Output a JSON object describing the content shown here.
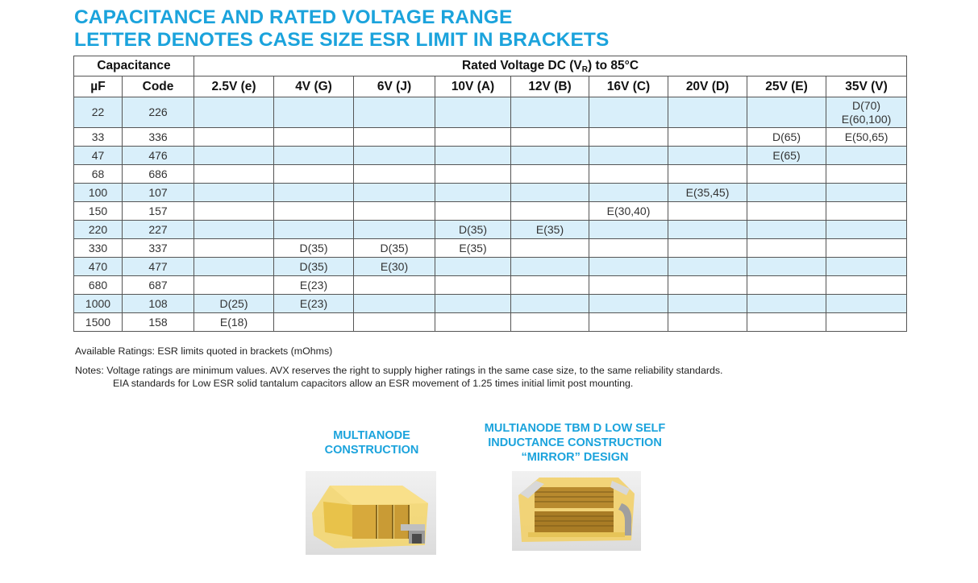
{
  "title": {
    "line1": "CAPACITANCE AND RATED VOLTAGE RANGE",
    "line2": "LETTER DENOTES CASE SIZE ESR LIMIT IN BRACKETS"
  },
  "table": {
    "capacitance_header": "Capacitance",
    "voltage_header_pre": "Rated Voltage DC (V",
    "voltage_header_sub": "R",
    "voltage_header_post": ") to 85°C",
    "col_uf": "µF",
    "col_code": "Code",
    "voltages": [
      "2.5V (e)",
      "4V (G)",
      "6V (J)",
      "10V (A)",
      "12V (B)",
      "16V (C)",
      "20V (D)",
      "25V (E)",
      "35V (V)"
    ],
    "rows": [
      {
        "uf": "22",
        "code": "226",
        "cells": [
          "",
          "",
          "",
          "",
          "",
          "",
          "",
          "",
          "D(70)\nE(60,100)"
        ]
      },
      {
        "uf": "33",
        "code": "336",
        "cells": [
          "",
          "",
          "",
          "",
          "",
          "",
          "",
          "D(65)",
          "E(50,65)"
        ]
      },
      {
        "uf": "47",
        "code": "476",
        "cells": [
          "",
          "",
          "",
          "",
          "",
          "",
          "",
          "E(65)",
          ""
        ]
      },
      {
        "uf": "68",
        "code": "686",
        "cells": [
          "",
          "",
          "",
          "",
          "",
          "",
          "",
          "",
          ""
        ]
      },
      {
        "uf": "100",
        "code": "107",
        "cells": [
          "",
          "",
          "",
          "",
          "",
          "",
          "E(35,45)",
          "",
          ""
        ]
      },
      {
        "uf": "150",
        "code": "157",
        "cells": [
          "",
          "",
          "",
          "",
          "",
          "E(30,40)",
          "",
          "",
          ""
        ]
      },
      {
        "uf": "220",
        "code": "227",
        "cells": [
          "",
          "",
          "",
          "D(35)",
          "E(35)",
          "",
          "",
          "",
          ""
        ]
      },
      {
        "uf": "330",
        "code": "337",
        "cells": [
          "",
          "D(35)",
          "D(35)",
          "E(35)",
          "",
          "",
          "",
          "",
          ""
        ]
      },
      {
        "uf": "470",
        "code": "477",
        "cells": [
          "",
          "D(35)",
          "E(30)",
          "",
          "",
          "",
          "",
          "",
          ""
        ]
      },
      {
        "uf": "680",
        "code": "687",
        "cells": [
          "",
          "E(23)",
          "",
          "",
          "",
          "",
          "",
          "",
          ""
        ]
      },
      {
        "uf": "1000",
        "code": "108",
        "cells": [
          "D(25)",
          "E(23)",
          "",
          "",
          "",
          "",
          "",
          "",
          ""
        ]
      },
      {
        "uf": "1500",
        "code": "158",
        "cells": [
          "E(18)",
          "",
          "",
          "",
          "",
          "",
          "",
          "",
          ""
        ]
      }
    ]
  },
  "notes": {
    "available": "Available Ratings: ESR limits quoted in brackets (mOhms)",
    "notes_line1": "Notes: Voltage ratings are minimum values. AVX reserves the right to supply higher ratings in the same case size, to the same reliability standards.",
    "notes_line2": "EIA standards for Low ESR solid tantalum capacitors allow an ESR movement of 1.25 times initial limit post mounting."
  },
  "figures": {
    "fig1_caption_line1": "MULTIANODE",
    "fig1_caption_line2": "CONSTRUCTION",
    "fig2_caption_line1": "MULTIANODE TBM D LOW SELF",
    "fig2_caption_line2": "INDUCTANCE CONSTRUCTION",
    "fig2_caption_line3": "“MIRROR” DESIGN"
  },
  "colors": {
    "accent": "#1ba3dc",
    "row_blue": "#d9effa"
  }
}
